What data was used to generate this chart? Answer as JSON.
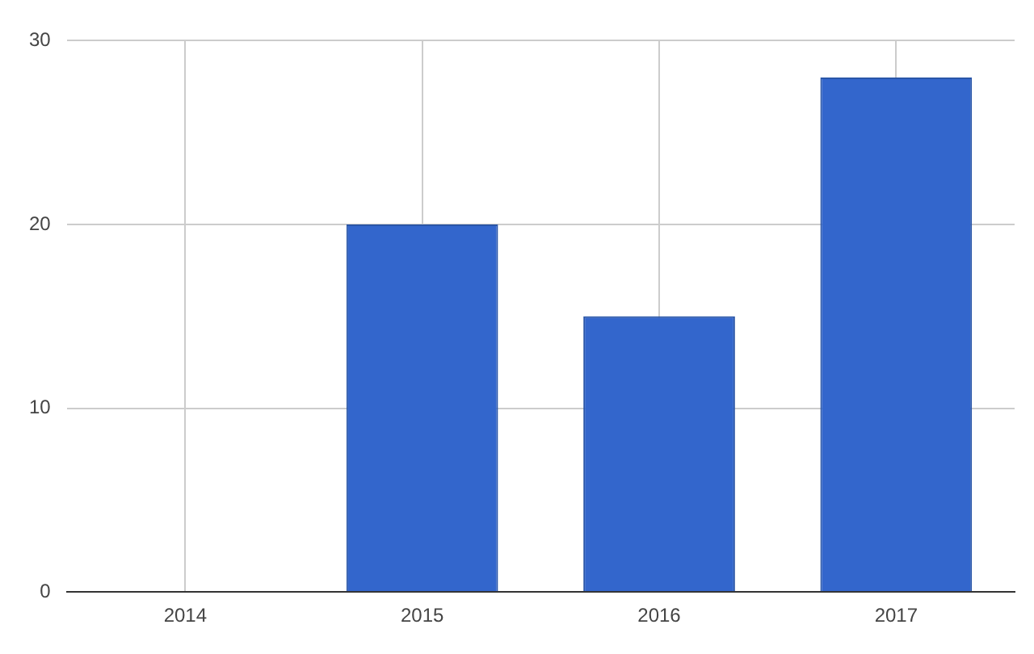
{
  "chart_data": {
    "type": "bar",
    "categories": [
      "2014",
      "2015",
      "2016",
      "2017"
    ],
    "values": [
      0,
      20,
      15,
      28
    ],
    "color": "#3366cc",
    "ylim": [
      0,
      30
    ],
    "yticks": [
      0,
      10,
      20,
      30
    ],
    "grid": true,
    "legend": false
  }
}
